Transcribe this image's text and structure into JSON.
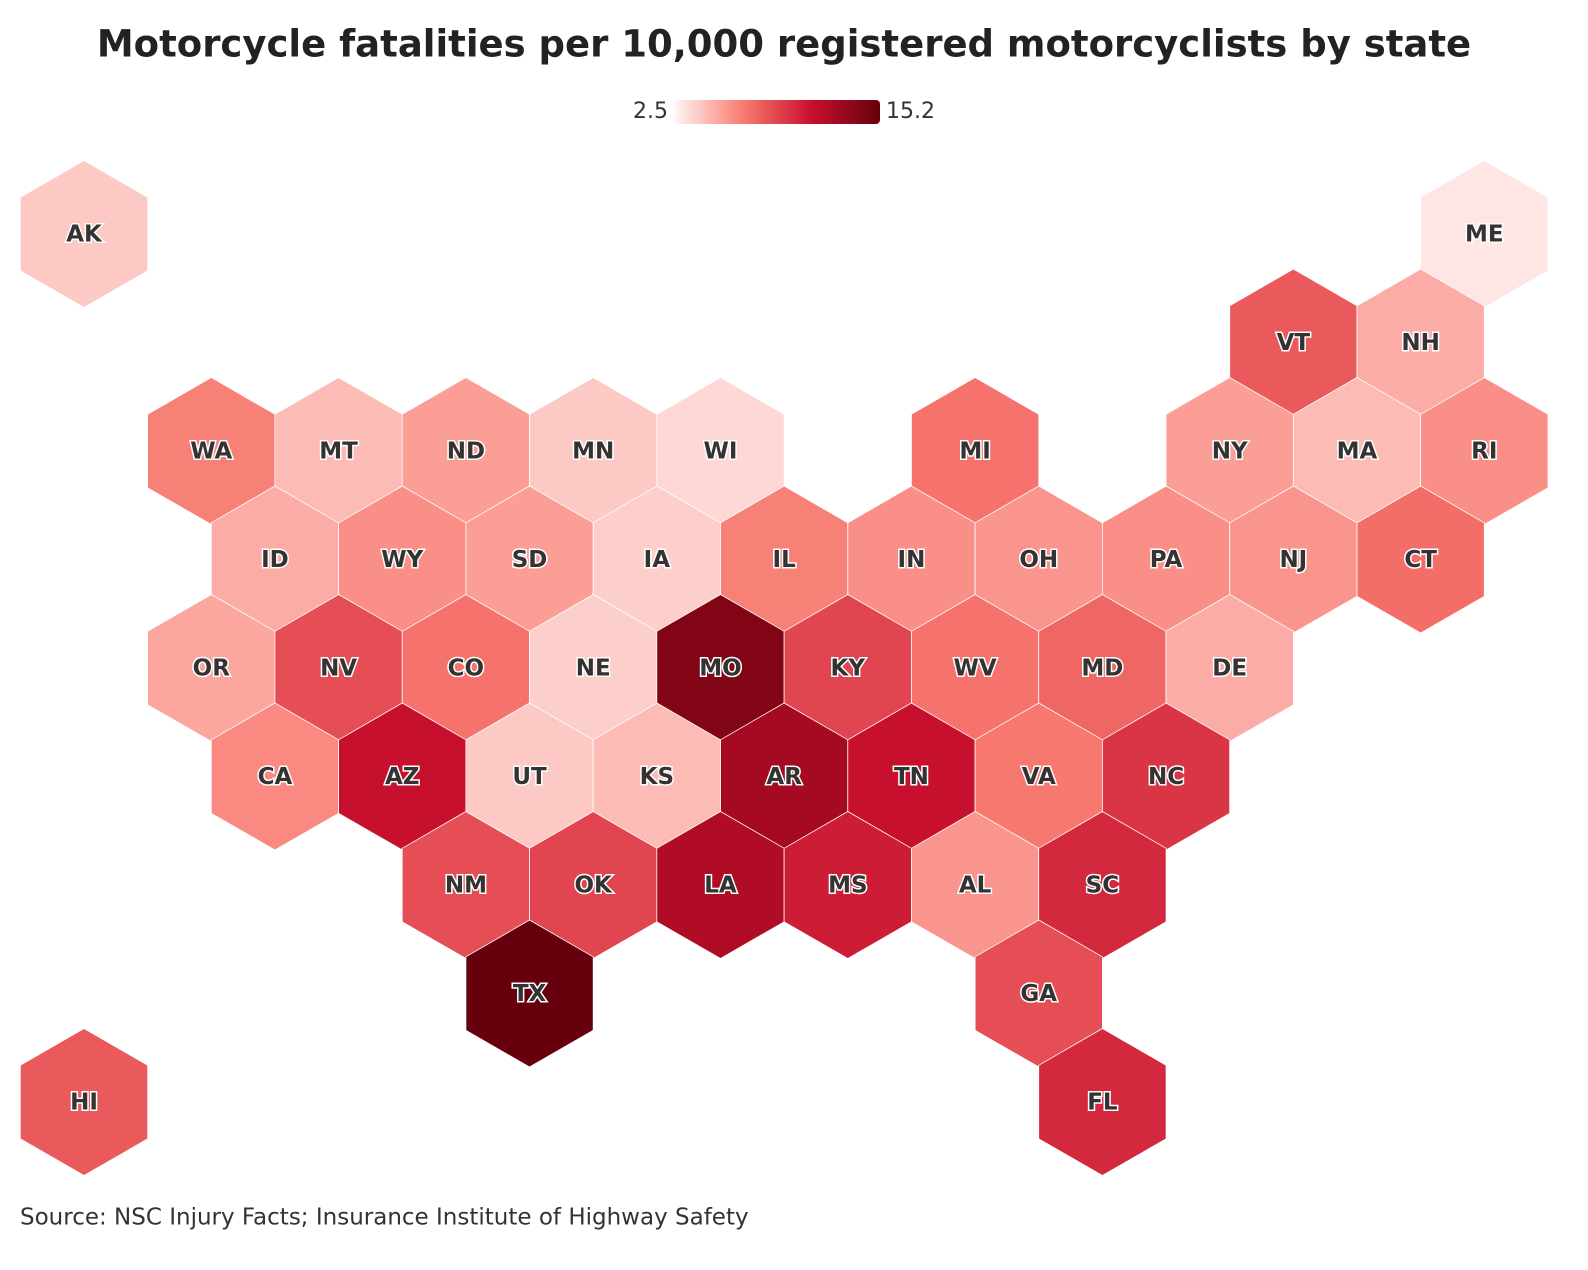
{
  "chart_data": {
    "type": "hexmap",
    "title": "Motorcycle fatalities per 10,000 registered motorcyclists by state",
    "source": "Source: NSC Injury Facts; Insurance Institute of Highway Safety",
    "colorlim": [
      2.5,
      15.2
    ],
    "colors": [
      "#fff5f3",
      "#f87a70",
      "#c8102e",
      "#67000d"
    ],
    "categories": [
      "AK",
      "ME",
      "VT",
      "NH",
      "WA",
      "MT",
      "ND",
      "MN",
      "WI",
      "MI",
      "NY",
      "MA",
      "RI",
      "ID",
      "WY",
      "SD",
      "IA",
      "IL",
      "IN",
      "OH",
      "PA",
      "NJ",
      "CT",
      "OR",
      "NV",
      "CO",
      "NE",
      "MO",
      "KY",
      "WV",
      "MD",
      "DE",
      "CA",
      "AZ",
      "UT",
      "KS",
      "AR",
      "TN",
      "VA",
      "NC",
      "NM",
      "OK",
      "LA",
      "MS",
      "AL",
      "SC",
      "TX",
      "GA",
      "HI",
      "FL"
    ],
    "values": [
      4.0,
      3.0,
      8.0,
      5.0,
      6.5,
      4.5,
      5.5,
      4.0,
      3.5,
      7.0,
      5.5,
      4.5,
      6.0,
      5.0,
      6.0,
      5.5,
      3.8,
      6.5,
      6.0,
      5.8,
      6.0,
      5.8,
      7.2,
      5.2,
      8.5,
      7.0,
      3.8,
      14.0,
      8.8,
      7.0,
      7.5,
      5.0,
      6.2,
      11.0,
      4.0,
      4.5,
      12.5,
      11.0,
      6.8,
      9.5,
      8.5,
      8.8,
      12.0,
      10.5,
      5.8,
      10.0,
      15.2,
      8.5,
      8.0,
      10.0
    ]
  }
}
